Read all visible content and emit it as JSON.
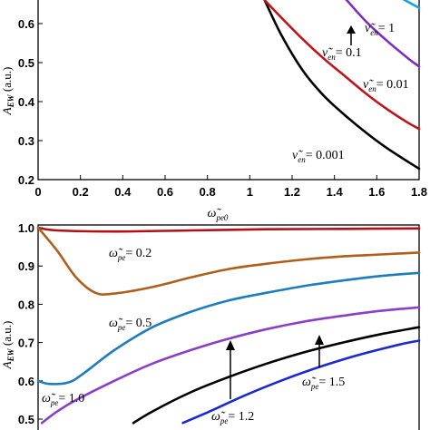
{
  "chart_data": [
    {
      "type": "line",
      "ylabel": "A_EW (a.u.)",
      "ylabel_main": "A",
      "ylabel_sub": "EW",
      "ylabel_unit": " (a.u.)",
      "xlabel": "ω̃pe0",
      "xlabel_main": "ω̃",
      "xlabel_sub": "pe0",
      "xlim": [
        0,
        1.8
      ],
      "ylim": [
        0.2,
        0.7
      ],
      "xticks": [
        "0",
        "0.2",
        "0.4",
        "0.6",
        "0.8",
        "1",
        "1.2",
        "1.4",
        "1.6",
        "1.8"
      ],
      "yticks": [
        "0.2",
        "0.3",
        "0.4",
        "0.5",
        "0.6"
      ],
      "series": [
        {
          "name": "ν̃en = 0.001",
          "color": "#000000",
          "x": [
            1.07,
            1.15,
            1.25,
            1.35,
            1.45,
            1.55,
            1.65,
            1.75,
            1.8
          ],
          "y": [
            0.66,
            0.57,
            0.48,
            0.415,
            0.365,
            0.32,
            0.28,
            0.245,
            0.228
          ]
        },
        {
          "name": "ν̃en = 0.01",
          "color": "#c0141b",
          "x": [
            1.07,
            1.15,
            1.25,
            1.35,
            1.45,
            1.55,
            1.65,
            1.75,
            1.8
          ],
          "y": [
            0.66,
            0.615,
            0.56,
            0.51,
            0.465,
            0.42,
            0.38,
            0.345,
            0.33
          ]
        },
        {
          "name": "ν̃en = 0.1",
          "color": "#7b2fbf",
          "x": [
            1.39,
            1.45,
            1.55,
            1.65,
            1.75,
            1.8
          ],
          "y": [
            0.7,
            0.665,
            0.605,
            0.555,
            0.51,
            0.49
          ]
        },
        {
          "name": "ν̃en = 1",
          "color": "#1aa3e0",
          "x": [
            1.6,
            1.65,
            1.75,
            1.8
          ],
          "y": [
            0.7,
            0.685,
            0.655,
            0.64
          ]
        }
      ],
      "annotations": [
        {
          "symbol": "ν̃",
          "sub": "en",
          "value": "= 1"
        },
        {
          "symbol": "ν̃",
          "sub": "en",
          "value": "= 0.1"
        },
        {
          "symbol": "ν̃",
          "sub": "en",
          "value": "= 0.01"
        },
        {
          "symbol": "ν̃",
          "sub": "en",
          "value": "= 0.001"
        }
      ]
    },
    {
      "type": "line",
      "ylabel": "A_EW (a.u.)",
      "ylabel_main": "A",
      "ylabel_sub": "EW",
      "ylabel_unit": " (a.u.)",
      "ylim": [
        0.5,
        1.0
      ],
      "yticks": [
        "0.5",
        "0.6",
        "0.7",
        "0.8",
        "0.9",
        "1.0"
      ],
      "series": [
        {
          "name": "ω̃pe = 0.2",
          "color": "#b20f17",
          "x": [
            0,
            0.05,
            0.2,
            0.4,
            0.6,
            0.8,
            1.0
          ],
          "y": [
            1.0,
            0.993,
            0.99,
            0.993,
            0.996,
            0.997,
            0.998
          ]
        },
        {
          "name": "ω̃pe = 0.5",
          "color": "#b05e1a",
          "x": [
            0,
            0.05,
            0.1,
            0.15,
            0.2,
            0.3,
            0.4,
            0.5,
            0.6,
            0.7,
            0.8,
            0.9,
            1.0
          ],
          "y": [
            1.0,
            0.94,
            0.87,
            0.83,
            0.828,
            0.845,
            0.87,
            0.892,
            0.906,
            0.917,
            0.925,
            0.93,
            0.935
          ]
        },
        {
          "name": "ω̃pe = 1.0",
          "color": "#1d7dbd",
          "x": [
            0,
            0.03,
            0.08,
            0.12,
            0.2,
            0.3,
            0.4,
            0.5,
            0.6,
            0.7,
            0.8,
            0.9,
            1.0
          ],
          "y": [
            0.6,
            0.592,
            0.596,
            0.62,
            0.68,
            0.74,
            0.78,
            0.81,
            0.83,
            0.848,
            0.862,
            0.874,
            0.882
          ]
        },
        {
          "name": "ω̃pe = 1.2",
          "color": "#8a3fc8",
          "x": [
            0.01,
            0.05,
            0.1,
            0.2,
            0.3,
            0.4,
            0.5,
            0.6,
            0.7,
            0.8,
            0.9,
            1.0
          ],
          "y": [
            0.49,
            0.52,
            0.55,
            0.6,
            0.645,
            0.68,
            0.71,
            0.735,
            0.755,
            0.77,
            0.783,
            0.792
          ]
        },
        {
          "name": "ω̃pe = 1.5",
          "color": "#000000",
          "x": [
            0.25,
            0.3,
            0.4,
            0.5,
            0.6,
            0.7,
            0.8,
            0.9,
            1.0
          ],
          "y": [
            0.49,
            0.52,
            0.57,
            0.61,
            0.645,
            0.675,
            0.7,
            0.722,
            0.74
          ]
        },
        {
          "name": "",
          "color": "#1a2acf",
          "x": [
            0.38,
            0.45,
            0.55,
            0.65,
            0.75,
            0.85,
            0.95,
            1.0
          ],
          "y": [
            0.49,
            0.52,
            0.565,
            0.605,
            0.64,
            0.67,
            0.695,
            0.705
          ]
        }
      ],
      "annotations": [
        {
          "symbol": "ω̃",
          "sub": "pe",
          "value": "= 0.2"
        },
        {
          "symbol": "ω̃",
          "sub": "pe",
          "value": "= 0.5"
        },
        {
          "symbol": "ω̃",
          "sub": "pe",
          "value": "= 1.0"
        },
        {
          "symbol": "ω̃",
          "sub": "pe",
          "value": "= 1.2"
        },
        {
          "symbol": "ω̃",
          "sub": "pe",
          "value": "= 1.5"
        }
      ]
    }
  ]
}
